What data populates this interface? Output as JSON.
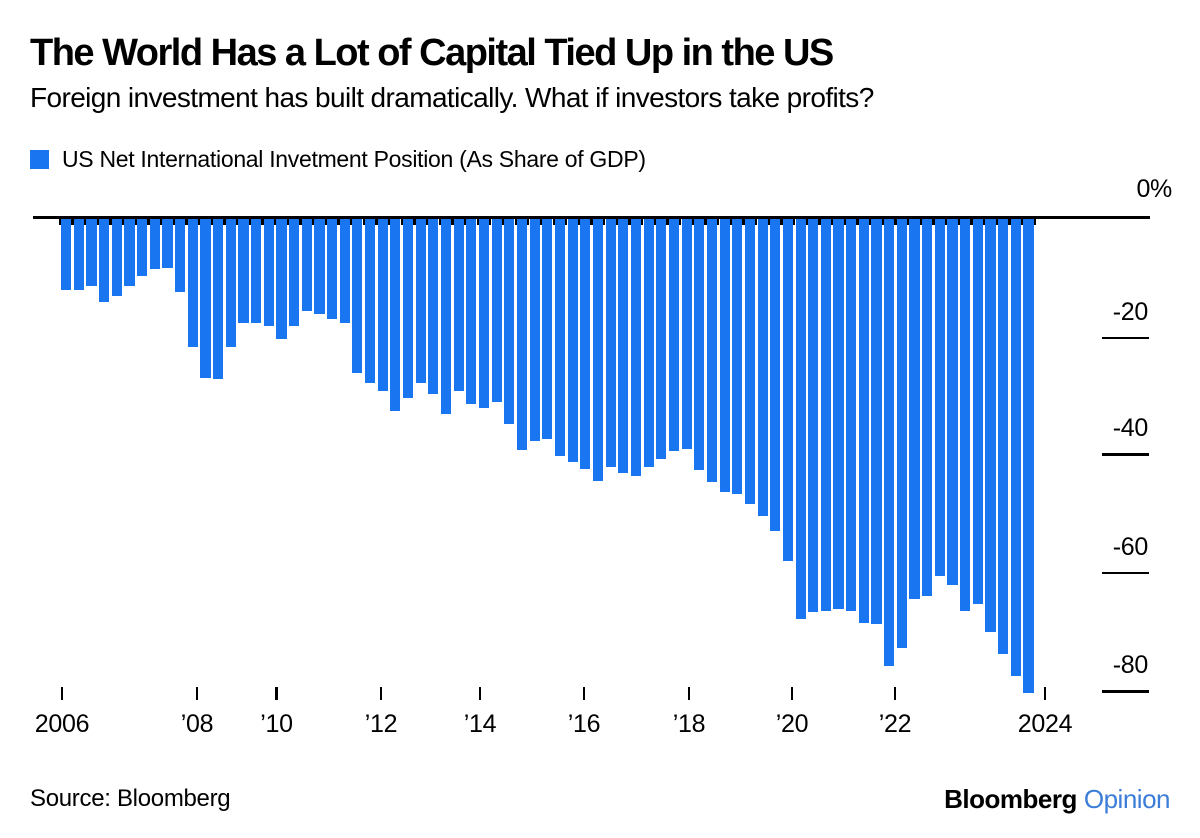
{
  "header": {
    "title": "The World Has a Lot of Capital Tied Up in the US",
    "subtitle": "Foreign investment has built dramatically. What if investors take profits?"
  },
  "legend": {
    "label": "US Net International Invetment Position (As Share of GDP)"
  },
  "chart_data": {
    "type": "bar",
    "title": "US Net International Invetment Position (As Share of GDP)",
    "unit": "percent of GDP",
    "frequency": "quarterly",
    "bar_color": "#1a76f0",
    "values": [
      -12.0,
      -12.0,
      -11.4,
      -14.1,
      -13.0,
      -11.3,
      -9.6,
      -8.4,
      -8.2,
      -12.4,
      -21.7,
      -26.8,
      -27.1,
      -21.7,
      -17.5,
      -17.5,
      -18.1,
      -20.3,
      -18.1,
      -15.5,
      -16.0,
      -16.9,
      -17.5,
      -26.0,
      -27.8,
      -29.1,
      -32.4,
      -30.2,
      -27.8,
      -29.6,
      -32.9,
      -29.1,
      -31.3,
      -31.9,
      -31.0,
      -34.7,
      -39.0,
      -37.6,
      -37.2,
      -40.1,
      -41.0,
      -42.3,
      -44.3,
      -42.0,
      -42.9,
      -43.4,
      -42.0,
      -40.6,
      -39.2,
      -38.9,
      -42.5,
      -44.5,
      -46.2,
      -46.5,
      -48.2,
      -50.2,
      -52.7,
      -57.8,
      -67.7,
      -66.4,
      -66.3,
      -66.0,
      -66.3,
      -68.3,
      -68.5,
      -75.6,
      -72.5,
      -64.3,
      -63.8,
      -60.4,
      -61.8,
      -66.2,
      -65.0,
      -69.8,
      -73.5,
      -77.3,
      -80.2
    ],
    "y_axis": {
      "top_label": "0%",
      "tick_labels": [
        "-20",
        "-40",
        "-60",
        "-80"
      ],
      "tick_values": [
        -20,
        -40,
        -60,
        -80
      ],
      "ylim": [
        -85,
        0
      ],
      "side": "right"
    },
    "x_axis": {
      "tick_labels": [
        "2006",
        "’08",
        "’10",
        "’12",
        "’14",
        "’16",
        "’18",
        "’20",
        "’22",
        "2024"
      ],
      "range_start": "2006",
      "range_end": "2024"
    },
    "legend_position": "top-left",
    "grid": false
  },
  "footer": {
    "source": "Source: Bloomberg",
    "logo_black": "Bloomberg",
    "logo_blue": "Opinion"
  }
}
